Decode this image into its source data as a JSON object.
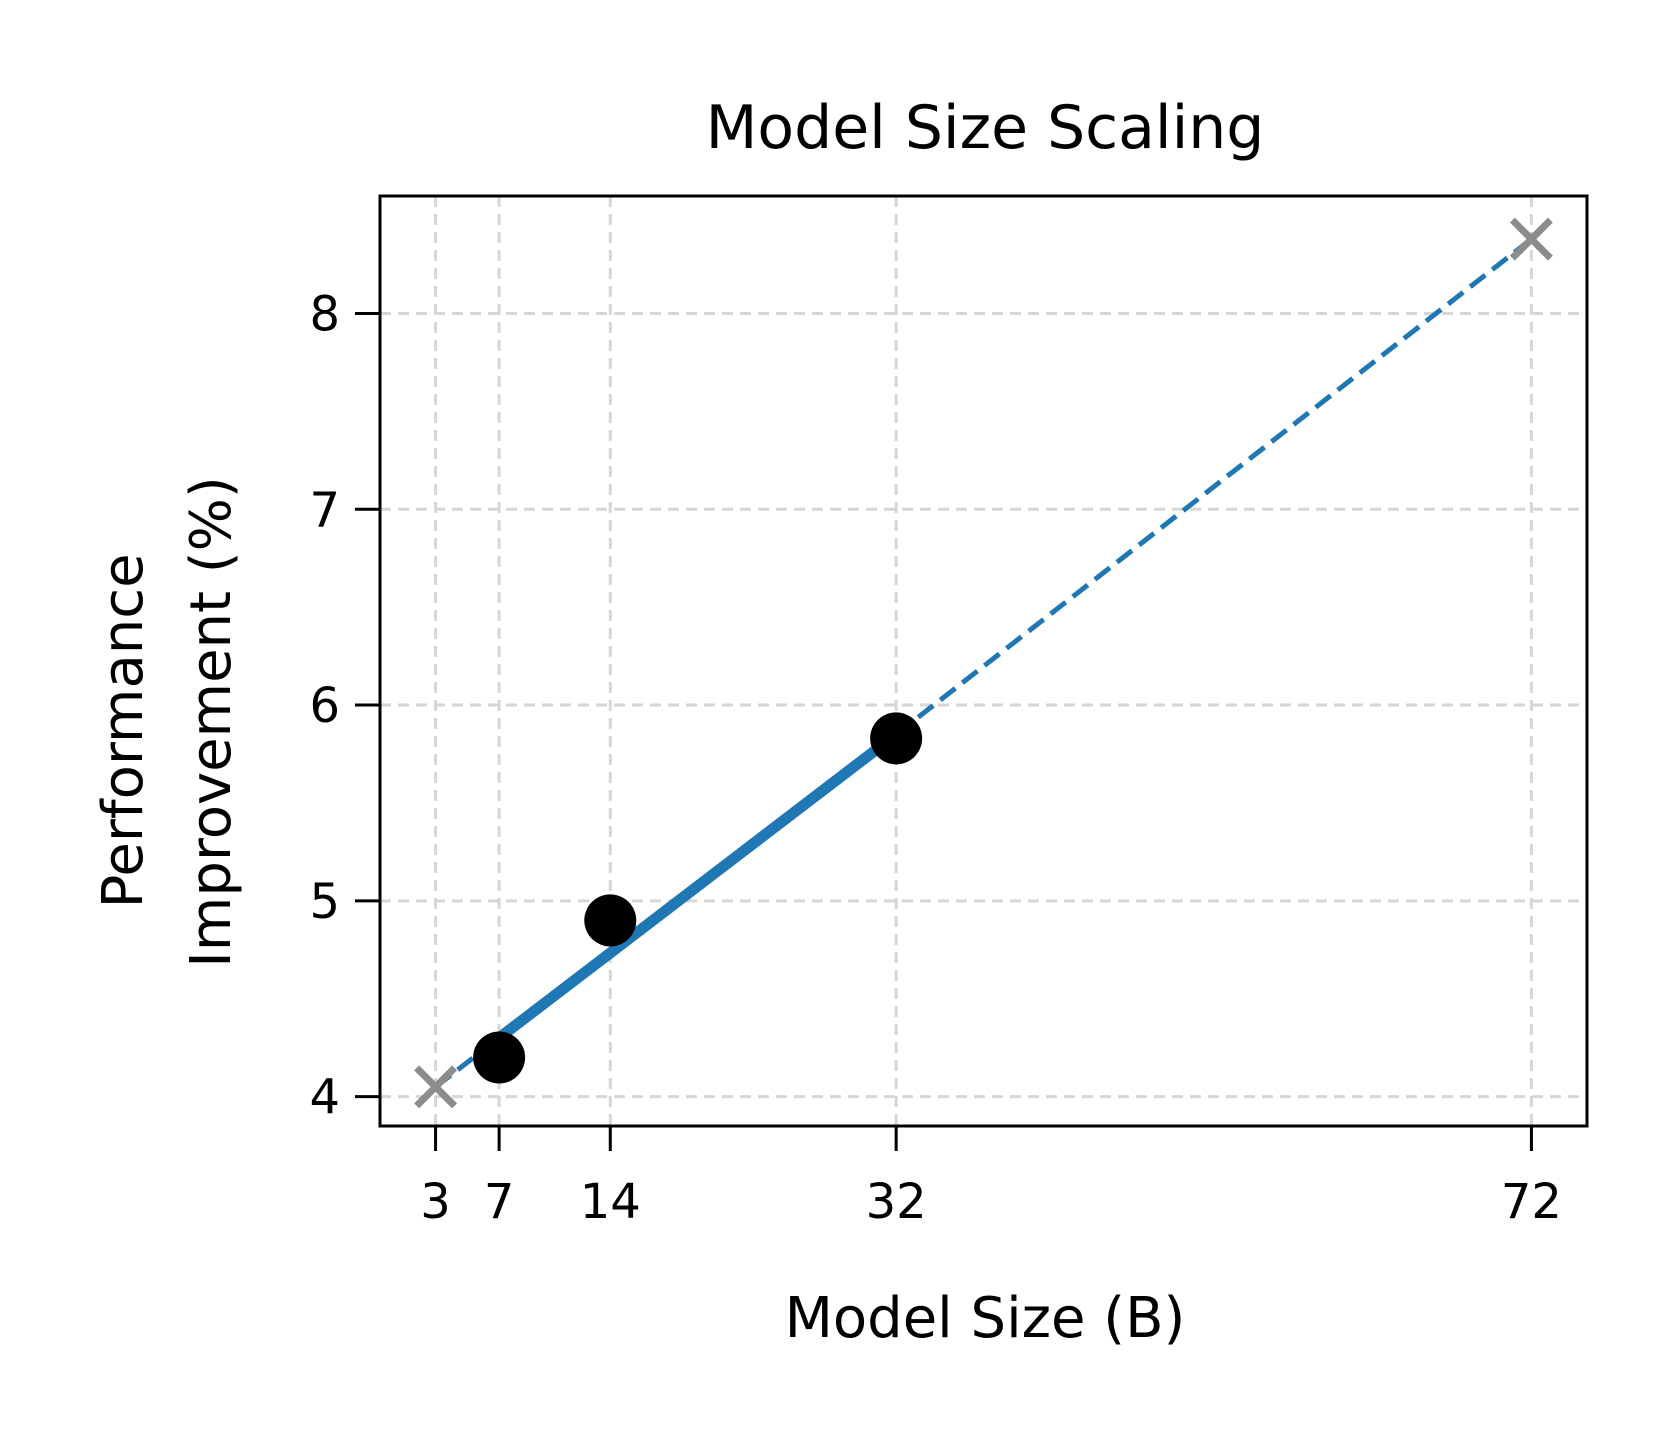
{
  "chart_data": {
    "type": "line",
    "title": "Model Size Scaling",
    "xlabel": "Model Size (B)",
    "ylabel_lines": [
      "Performance",
      "Improvement (%)"
    ],
    "x_ticks": [
      3,
      7,
      14,
      32,
      72
    ],
    "y_ticks": [
      4,
      5,
      6,
      7,
      8
    ],
    "xlim": [
      -0.5,
      75.5
    ],
    "ylim": [
      3.85,
      8.6
    ],
    "grid": true,
    "series": [
      {
        "style": "solid",
        "marker": "circle",
        "color": "#1f77b4",
        "marker_color": "#000000",
        "points": [
          {
            "x": 7,
            "y": 4.2
          },
          {
            "x": 14,
            "y": 4.9
          },
          {
            "x": 32,
            "y": 5.83
          }
        ],
        "fit_line": [
          {
            "x": 7,
            "y": 4.3
          },
          {
            "x": 32,
            "y": 5.85
          }
        ]
      },
      {
        "style": "dashed",
        "marker": "x",
        "color": "#1f77b4",
        "marker_color": "#8c8c8c",
        "segments": [
          [
            {
              "x": 3,
              "y": 4.05
            },
            {
              "x": 7,
              "y": 4.3
            }
          ],
          [
            {
              "x": 32,
              "y": 5.85
            },
            {
              "x": 72,
              "y": 8.38
            }
          ]
        ],
        "points": [
          {
            "x": 3,
            "y": 4.05
          },
          {
            "x": 72,
            "y": 8.38
          }
        ]
      }
    ]
  }
}
